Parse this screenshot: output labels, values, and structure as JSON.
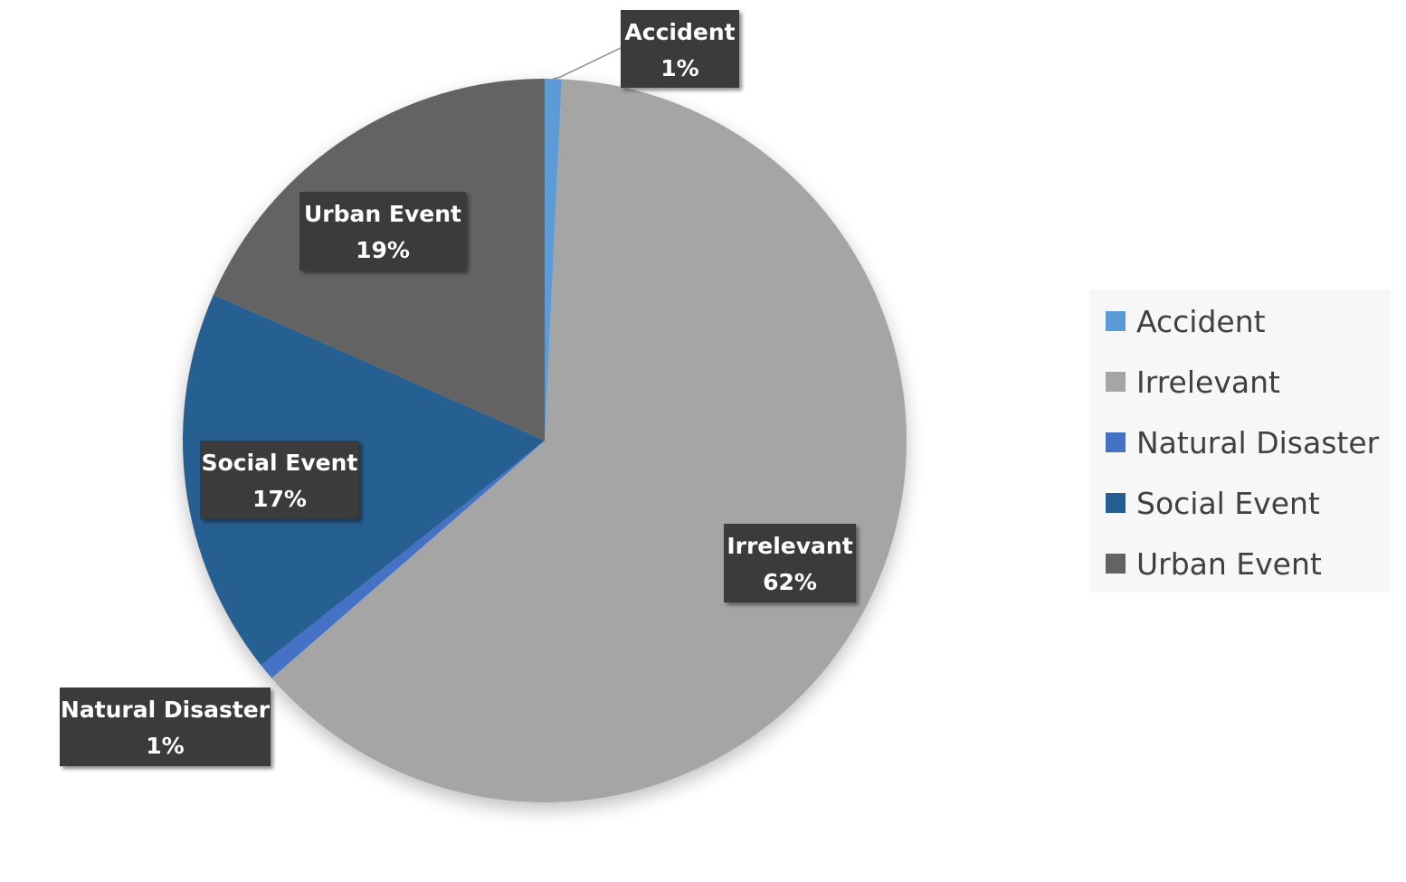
{
  "chart_data": {
    "type": "pie",
    "title": "",
    "slices": [
      {
        "label": "Accident",
        "percent_label": "1%",
        "value": 1,
        "color": "#5b9bd5"
      },
      {
        "label": "Irrelevant",
        "percent_label": "62%",
        "value": 62,
        "color": "#a5a5a5"
      },
      {
        "label": "Natural Disaster",
        "percent_label": "1%",
        "value": 1,
        "color": "#4472c4"
      },
      {
        "label": "Social Event",
        "percent_label": "17%",
        "value": 17,
        "color": "#255e91"
      },
      {
        "label": "Urban Event",
        "percent_label": "19%",
        "value": 19,
        "color": "#636363"
      }
    ],
    "legend_position": "right",
    "start_angle": "12 o'clock, clockwise"
  },
  "legend": {
    "items": [
      {
        "label": "Accident",
        "color": "#5b9bd5"
      },
      {
        "label": "Irrelevant",
        "color": "#a5a5a5"
      },
      {
        "label": "Natural Disaster",
        "color": "#4472c4"
      },
      {
        "label": "Social Event",
        "color": "#255e91"
      },
      {
        "label": "Urban Event",
        "color": "#636363"
      }
    ]
  },
  "colors": {
    "label_box": "#3a3a3a",
    "label_text": "#ffffff",
    "legend_background": "#f7f7f7",
    "legend_text": "#404040"
  }
}
